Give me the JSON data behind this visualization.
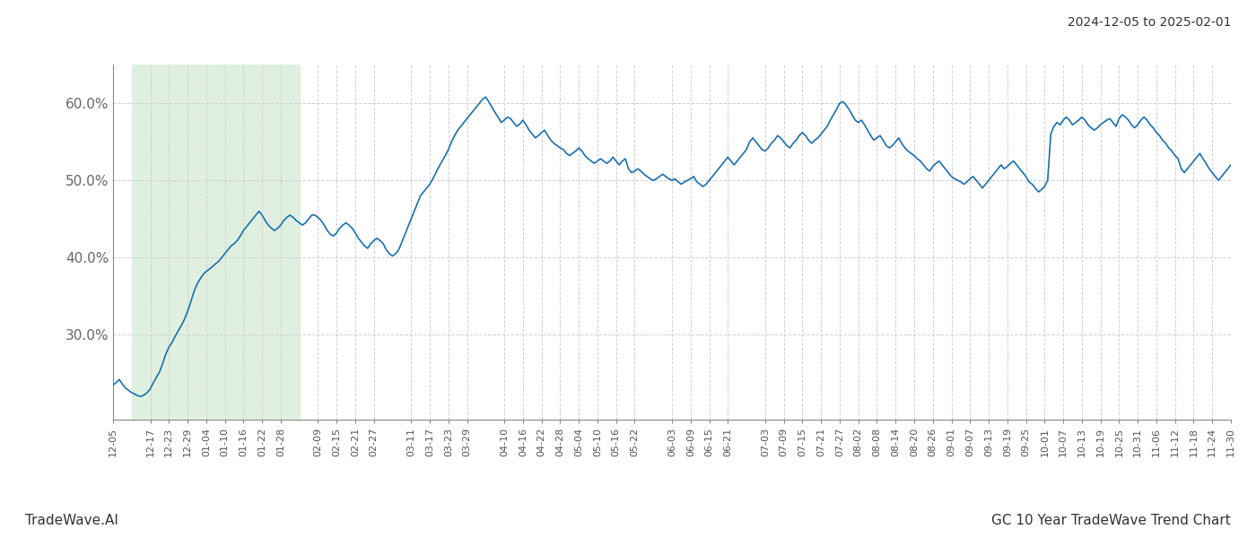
{
  "title_top_right": "2024-12-05 to 2025-02-01",
  "footer_left": "TradeWave.AI",
  "footer_right": "GC 10 Year TradeWave Trend Chart",
  "line_color": "#1a6faf",
  "line_width": 1.2,
  "shaded_region_color": "#dff0e0",
  "shaded_start": "2024-12-11",
  "shaded_end": "2025-02-03",
  "ylim": [
    19.0,
    65.0
  ],
  "yticks": [
    30.0,
    40.0,
    50.0,
    60.0
  ],
  "background_color": "#ffffff",
  "grid_color": "#d0d0d0",
  "grid_style": "--",
  "xtick_labels": [
    "12-05",
    "12-17",
    "12-23",
    "12-29",
    "01-04",
    "01-10",
    "01-16",
    "01-22",
    "01-28",
    "02-09",
    "02-15",
    "02-21",
    "02-27",
    "03-11",
    "03-17",
    "03-23",
    "03-29",
    "04-10",
    "04-16",
    "04-22",
    "04-28",
    "05-04",
    "05-10",
    "05-16",
    "05-22",
    "06-03",
    "06-09",
    "06-15",
    "06-21",
    "07-03",
    "07-09",
    "07-15",
    "07-21",
    "07-27",
    "08-02",
    "08-08",
    "08-14",
    "08-20",
    "08-26",
    "09-01",
    "09-07",
    "09-13",
    "09-19",
    "09-25",
    "10-01",
    "10-07",
    "10-13",
    "10-19",
    "10-25",
    "10-31",
    "11-06",
    "11-12",
    "11-18",
    "11-24",
    "11-30"
  ],
  "y_values": [
    23.5,
    23.8,
    24.2,
    23.6,
    23.1,
    22.8,
    22.5,
    22.3,
    22.1,
    22.0,
    22.2,
    22.5,
    23.0,
    23.8,
    24.5,
    25.2,
    26.3,
    27.5,
    28.4,
    29.0,
    29.8,
    30.5,
    31.2,
    32.0,
    33.0,
    34.2,
    35.5,
    36.5,
    37.2,
    37.8,
    38.2,
    38.5,
    38.8,
    39.2,
    39.5,
    40.0,
    40.5,
    41.0,
    41.5,
    41.8,
    42.2,
    42.8,
    43.5,
    44.0,
    44.5,
    45.0,
    45.5,
    46.0,
    45.5,
    44.8,
    44.2,
    43.8,
    43.5,
    43.8,
    44.2,
    44.8,
    45.2,
    45.5,
    45.2,
    44.8,
    44.5,
    44.2,
    44.5,
    45.0,
    45.5,
    45.5,
    45.2,
    44.8,
    44.2,
    43.5,
    43.0,
    42.8,
    43.2,
    43.8,
    44.2,
    44.5,
    44.2,
    43.8,
    43.2,
    42.5,
    42.0,
    41.5,
    41.2,
    41.8,
    42.2,
    42.5,
    42.2,
    41.8,
    41.0,
    40.5,
    40.2,
    40.5,
    41.0,
    42.0,
    43.0,
    44.0,
    45.0,
    46.0,
    47.0,
    48.0,
    48.5,
    49.0,
    49.5,
    50.2,
    51.0,
    51.8,
    52.5,
    53.2,
    54.0,
    55.0,
    55.8,
    56.5,
    57.0,
    57.5,
    58.0,
    58.5,
    59.0,
    59.5,
    60.0,
    60.5,
    60.8,
    60.2,
    59.5,
    58.8,
    58.2,
    57.5,
    57.8,
    58.2,
    58.0,
    57.5,
    57.0,
    57.3,
    57.8,
    57.2,
    56.5,
    56.0,
    55.5,
    55.8,
    56.2,
    56.5,
    55.8,
    55.2,
    54.8,
    54.5,
    54.2,
    54.0,
    53.5,
    53.2,
    53.5,
    53.8,
    54.2,
    53.8,
    53.2,
    52.8,
    52.5,
    52.2,
    52.5,
    52.8,
    52.5,
    52.2,
    52.5,
    53.0,
    52.5,
    52.0,
    52.5,
    52.8,
    51.5,
    51.0,
    51.2,
    51.5,
    51.2,
    50.8,
    50.5,
    50.2,
    50.0,
    50.2,
    50.5,
    50.8,
    50.5,
    50.2,
    50.0,
    50.2,
    49.8,
    49.5,
    49.8,
    50.0,
    50.2,
    50.5,
    49.8,
    49.5,
    49.2,
    49.5,
    50.0,
    50.5,
    51.0,
    51.5,
    52.0,
    52.5,
    53.0,
    52.5,
    52.0,
    52.5,
    53.0,
    53.5,
    54.0,
    55.0,
    55.5,
    55.0,
    54.5,
    54.0,
    53.8,
    54.2,
    54.8,
    55.2,
    55.8,
    55.5,
    55.0,
    54.5,
    54.2,
    54.8,
    55.2,
    55.8,
    56.2,
    55.8,
    55.2,
    54.8,
    55.2,
    55.5,
    56.0,
    56.5,
    57.0,
    57.8,
    58.5,
    59.2,
    60.0,
    60.2,
    59.8,
    59.2,
    58.5,
    57.8,
    57.5,
    57.8,
    57.2,
    56.5,
    55.8,
    55.2,
    55.5,
    55.8,
    55.2,
    54.5,
    54.2,
    54.5,
    55.0,
    55.5,
    54.8,
    54.2,
    53.8,
    53.5,
    53.2,
    52.8,
    52.5,
    52.0,
    51.5,
    51.2,
    51.8,
    52.2,
    52.5,
    52.0,
    51.5,
    51.0,
    50.5,
    50.2,
    50.0,
    49.8,
    49.5,
    49.8,
    50.2,
    50.5,
    50.0,
    49.5,
    49.0,
    49.5,
    50.0,
    50.5,
    51.0,
    51.5,
    52.0,
    51.5,
    51.8,
    52.2,
    52.5,
    52.0,
    51.5,
    51.0,
    50.5,
    49.8,
    49.5,
    49.0,
    48.5,
    48.8,
    49.2,
    50.0,
    56.0,
    57.0,
    57.5,
    57.2,
    57.8,
    58.2,
    57.8,
    57.2,
    57.5,
    57.8,
    58.2,
    57.8,
    57.2,
    56.8,
    56.5,
    56.8,
    57.2,
    57.5,
    57.8,
    58.0,
    57.5,
    57.0,
    58.0,
    58.5,
    58.2,
    57.8,
    57.2,
    56.8,
    57.2,
    57.8,
    58.2,
    57.8,
    57.2,
    56.8,
    56.2,
    55.8,
    55.2,
    54.8,
    54.2,
    53.8,
    53.2,
    52.8,
    51.5,
    51.0,
    51.5,
    52.0,
    52.5,
    53.0,
    53.5,
    52.8,
    52.2,
    51.5,
    51.0,
    50.5,
    50.0,
    50.5,
    51.0,
    51.5,
    52.0,
    52.5,
    52.0,
    51.5,
    50.8,
    50.2,
    49.5,
    49.0,
    49.5,
    50.0,
    50.5,
    51.0,
    51.5,
    52.0,
    52.5,
    53.0,
    52.5,
    52.0,
    51.5,
    51.2,
    51.8,
    52.2,
    52.5,
    52.2,
    51.8,
    51.5
  ]
}
